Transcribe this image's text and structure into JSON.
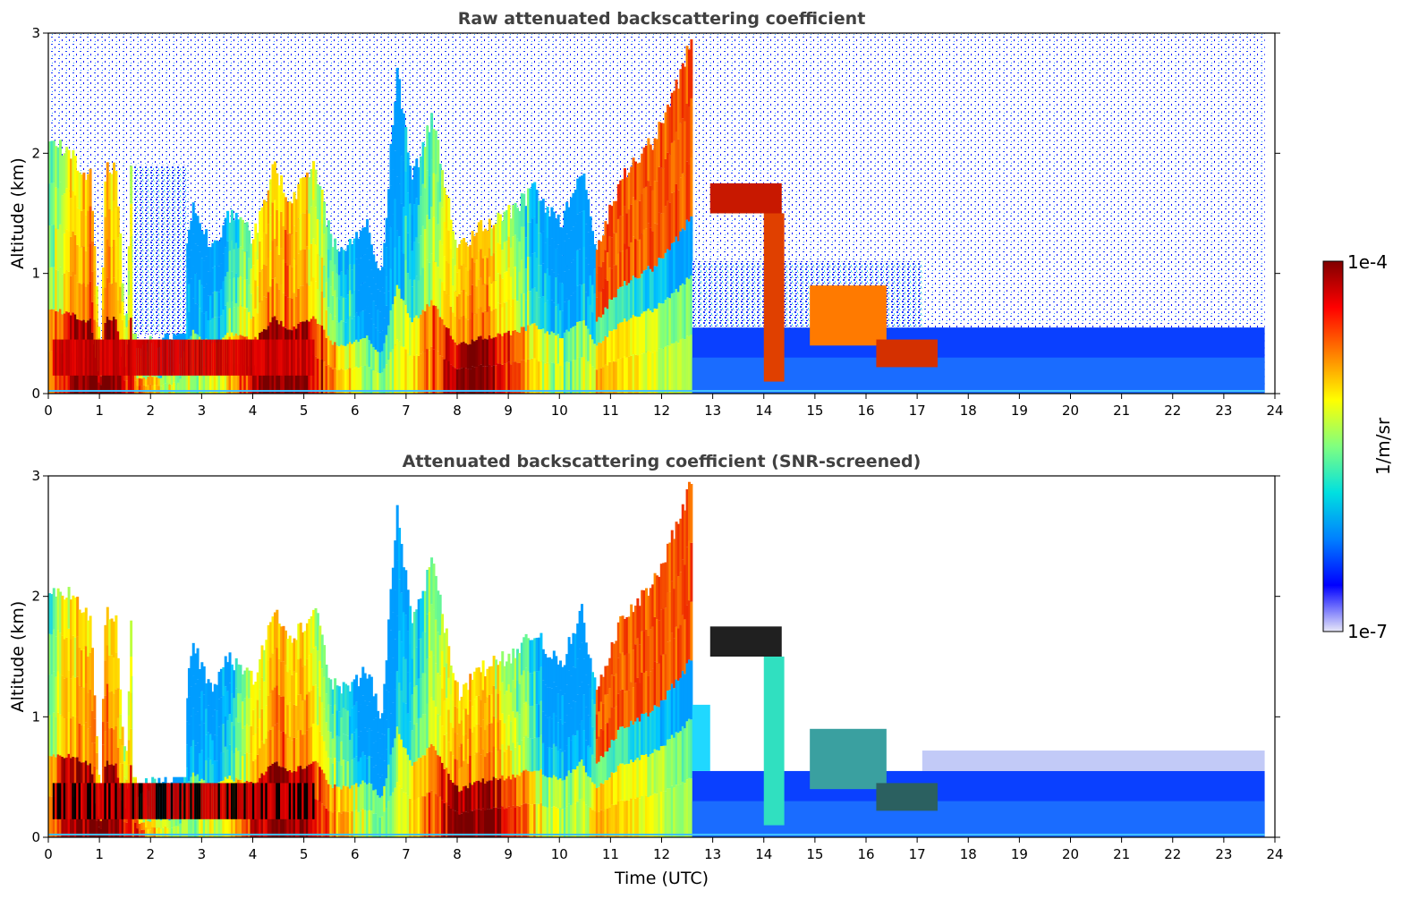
{
  "chart_data": [
    {
      "type": "heatmap",
      "title": "Raw attenuated backscattering coefficient",
      "xlabel": "",
      "ylabel": "Altitude (km)",
      "xlim": [
        0,
        24
      ],
      "ylim": [
        0,
        3
      ],
      "xticks": [
        0,
        1,
        2,
        3,
        4,
        5,
        6,
        7,
        8,
        9,
        10,
        11,
        12,
        13,
        14,
        15,
        16,
        17,
        18,
        19,
        20,
        21,
        22,
        23,
        24
      ],
      "yticks": [
        0,
        1,
        2,
        3
      ],
      "data_end_time": 23.8,
      "screened": false
    },
    {
      "type": "heatmap",
      "title": "Attenuated backscattering coefficient (SNR-screened)",
      "xlabel": "Time (UTC)",
      "ylabel": "Altitude (km)",
      "xlim": [
        0,
        24
      ],
      "ylim": [
        0,
        3
      ],
      "xticks": [
        0,
        1,
        2,
        3,
        4,
        5,
        6,
        7,
        8,
        9,
        10,
        11,
        12,
        13,
        14,
        15,
        16,
        17,
        18,
        19,
        20,
        21,
        22,
        23,
        24
      ],
      "yticks": [
        0,
        1,
        2,
        3
      ],
      "data_end_time": 23.8,
      "screened": true
    }
  ],
  "colorbar": {
    "label": "1/m/sr",
    "max_label": "1e-4",
    "min_label": "1e-7",
    "scale": "log",
    "colormap": "jet",
    "colors": [
      "#e8e8f8",
      "#0000ff",
      "#0080ff",
      "#00e0e0",
      "#80ff80",
      "#ffff00",
      "#ff8000",
      "#ff0000",
      "#800000"
    ]
  }
}
